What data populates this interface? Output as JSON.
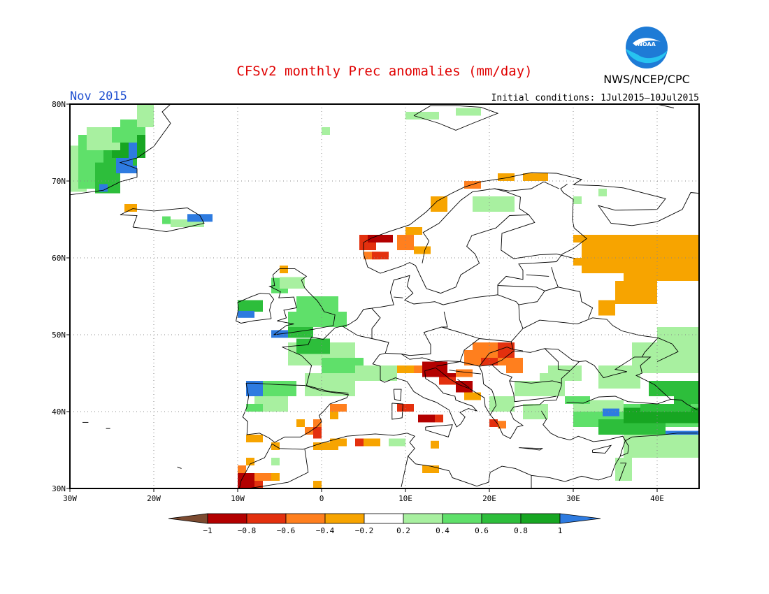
{
  "title": "CFSv2 monthly Prec anomalies (mm/day)",
  "month_label": "Nov 2015",
  "agency": "NWS/NCEP/CPC",
  "logo_text": "NOAA",
  "init_conditions": "Initial conditions: 1Jul2015–10Jul2015",
  "colors": {
    "title": "#e00000",
    "month_label": "#2050d0",
    "noaa_blue": "#1e7bd6",
    "noaa_cyan": "#27c4f0"
  },
  "map": {
    "lon_range": [
      -30,
      45
    ],
    "lat_range": [
      30,
      80
    ],
    "lon_ticks": [
      {
        "value": -30,
        "label": "30W"
      },
      {
        "value": -20,
        "label": "20W"
      },
      {
        "value": -10,
        "label": "10W"
      },
      {
        "value": 0,
        "label": "0"
      },
      {
        "value": 10,
        "label": "10E"
      },
      {
        "value": 20,
        "label": "20E"
      },
      {
        "value": 30,
        "label": "30E"
      },
      {
        "value": 40,
        "label": "40E"
      }
    ],
    "lat_ticks": [
      {
        "value": 30,
        "label": "30N"
      },
      {
        "value": 40,
        "label": "40N"
      },
      {
        "value": 50,
        "label": "50N"
      },
      {
        "value": 60,
        "label": "60N"
      },
      {
        "value": 70,
        "label": "70N"
      },
      {
        "value": 80,
        "label": "80N"
      }
    ],
    "gridlines": "dotted"
  },
  "colorbar": {
    "boundaries": [
      "−1",
      "−0.8",
      "−0.6",
      "−0.4",
      "−0.2",
      "0.2",
      "0.4",
      "0.6",
      "0.8",
      "1"
    ],
    "low_color": "#7b4a30",
    "high_color": "#2e7be0",
    "colors": [
      "#b30000",
      "#e3300e",
      "#ff7f1e",
      "#f7a400",
      "#ffffff",
      "#a8f0a0",
      "#5fe06a",
      "#2dbe3b",
      "#17a622"
    ]
  },
  "anomaly_regions": [
    {
      "name": "Greenland east coast",
      "level": "0.4 to 0.8",
      "color": "#2dbe3b"
    },
    {
      "name": "Greenland inland",
      "level": ">1",
      "color": "#2e7be0"
    },
    {
      "name": "Iceland",
      "level": "0.2 to 1",
      "color": "#a8f0a0"
    },
    {
      "name": "Iceland NW",
      "level": "-0.2 to -0.4",
      "color": "#f7a400"
    },
    {
      "name": "Ireland / UK",
      "level": "0.2 to 0.8",
      "color": "#5fe06a"
    },
    {
      "name": "Ireland SW",
      "level": ">1",
      "color": "#2e7be0"
    },
    {
      "name": "France / Iberia north",
      "level": "0.2 to 0.6",
      "color": "#a8f0a0"
    },
    {
      "name": "NW Iberia",
      "level": ">1",
      "color": "#2e7be0"
    },
    {
      "name": "SE Spain",
      "level": "-0.4 to -0.8",
      "color": "#e3300e"
    },
    {
      "name": "Norway west coast",
      "level": "-0.4 to -0.8",
      "color": "#e3300e"
    },
    {
      "name": "Italy / Adriatic",
      "level": "-0.6 to -1",
      "color": "#b30000"
    },
    {
      "name": "Hungary / Balkans",
      "level": "-0.4 to -0.6",
      "color": "#ff7f1e"
    },
    {
      "name": "Western Russia",
      "level": "-0.2 to -0.4",
      "color": "#f7a400"
    },
    {
      "name": "Turkey / Black Sea",
      "level": "0.4 to 1",
      "color": "#2dbe3b"
    },
    {
      "name": "NW Africa",
      "level": "-0.2 to -1",
      "color": "#b30000"
    },
    {
      "name": "North Africa coast",
      "level": "-0.2 to -0.6",
      "color": "#ff7f1e"
    }
  ]
}
